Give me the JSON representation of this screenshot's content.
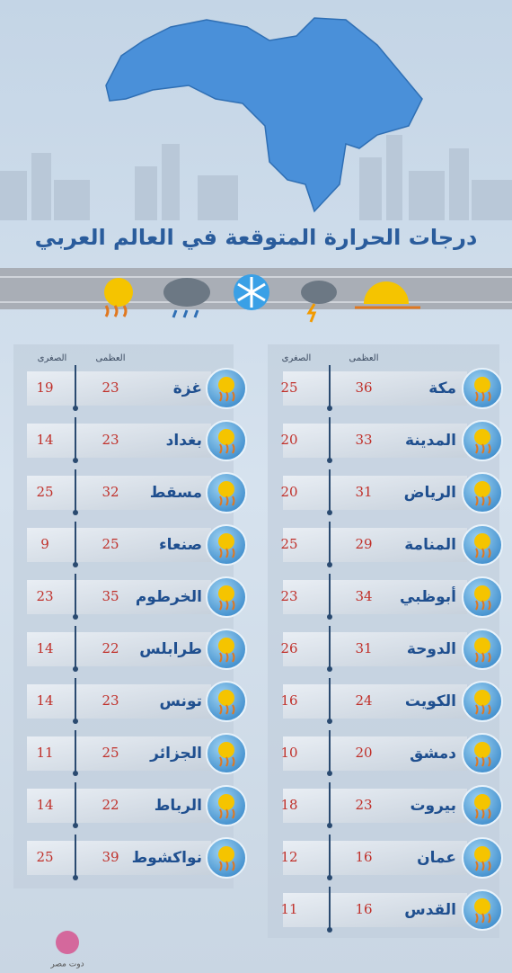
{
  "title": "درجات الحرارة المتوقعة في العالم العربي",
  "panels": [
    {
      "headers": {
        "max": "العظمى",
        "min": "الصغرى"
      },
      "rows": [
        {
          "city": "مكة",
          "max": 36,
          "min": 25
        },
        {
          "city": "المدينة",
          "max": 33,
          "min": 20
        },
        {
          "city": "الرياض",
          "max": 31,
          "min": 20
        },
        {
          "city": "المنامة",
          "max": 29,
          "min": 25
        },
        {
          "city": "أبوظبي",
          "max": 34,
          "min": 23
        },
        {
          "city": "الدوحة",
          "max": 31,
          "min": 26
        },
        {
          "city": "الكويت",
          "max": 24,
          "min": 16
        },
        {
          "city": "دمشق",
          "max": 20,
          "min": 10
        },
        {
          "city": "بيروت",
          "max": 23,
          "min": 18
        },
        {
          "city": "عمان",
          "max": 16,
          "min": 12
        },
        {
          "city": "القدس",
          "max": 16,
          "min": 11
        }
      ]
    },
    {
      "headers": {
        "max": "العظمى",
        "min": "الصغرى"
      },
      "rows": [
        {
          "city": "غزة",
          "max": 23,
          "min": 19
        },
        {
          "city": "بغداد",
          "max": 23,
          "min": 14
        },
        {
          "city": "مسقط",
          "max": 32,
          "min": 25
        },
        {
          "city": "صنعاء",
          "max": 25,
          "min": 9
        },
        {
          "city": "الخرطوم",
          "max": 35,
          "min": 23
        },
        {
          "city": "طرابلس",
          "max": 22,
          "min": 14
        },
        {
          "city": "تونس",
          "max": 23,
          "min": 14
        },
        {
          "city": "الجزائر",
          "max": 25,
          "min": 11
        },
        {
          "city": "الرباط",
          "max": 22,
          "min": 14
        },
        {
          "city": "نواكشوط",
          "max": 39,
          "min": 25
        }
      ]
    }
  ],
  "logo": {
    "name": "دوت مصر"
  }
}
